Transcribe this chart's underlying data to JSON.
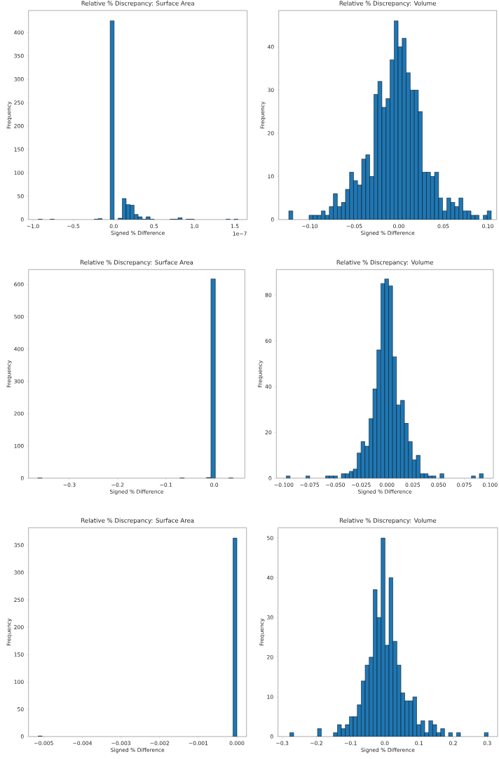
{
  "chart_data": [
    {
      "type": "histogram",
      "title": "Relative % Discrepancy: Surface Area",
      "xlabel": "Signed % Difference",
      "ylabel": "Frequency",
      "color": "#1f77b4",
      "bins": [
        -0.935,
        -0.8855,
        -0.836,
        -0.7865,
        -0.737,
        -0.6875,
        -0.638,
        -0.5885,
        -0.539,
        -0.4895,
        -0.44,
        -0.3905,
        -0.341,
        -0.2915,
        -0.242,
        -0.1925,
        -0.143,
        -0.0935,
        -0.044,
        0.0055,
        0.055,
        0.1045,
        0.154,
        0.2035,
        0.253,
        0.3025,
        0.352,
        0.4015,
        0.451,
        0.5005,
        0.55,
        0.5995,
        0.649,
        0.6985,
        0.748,
        0.7975,
        0.847,
        0.8965,
        0.946,
        0.9955,
        1.045,
        1.0945,
        1.144,
        1.1935,
        1.243,
        1.2925,
        1.342,
        1.3915,
        1.441,
        1.4905,
        1.54
      ],
      "values": [
        1,
        0,
        0,
        1,
        0,
        0,
        0,
        0,
        0,
        0,
        0,
        0,
        0,
        0,
        1,
        2,
        0,
        0,
        425,
        0,
        3,
        45,
        32,
        31,
        11,
        6,
        1,
        6,
        1,
        0,
        0,
        0,
        0,
        1,
        1,
        4,
        0,
        1,
        1,
        0,
        0,
        0,
        0,
        0,
        0,
        0,
        0,
        1,
        0,
        1
      ],
      "xlim": [
        -1.055,
        1.653
      ],
      "ylim": [
        0,
        447
      ],
      "xticks": [
        {
          "value": -1.0,
          "label": "−1.0"
        },
        {
          "value": -0.5,
          "label": "−0.5"
        },
        {
          "value": 0,
          "label": "0.0"
        },
        {
          "value": 0.5,
          "label": "0.5"
        },
        {
          "value": 1.0,
          "label": "1.0"
        },
        {
          "value": 1.5,
          "label": "1.5"
        }
      ],
      "yticks": [
        0,
        50,
        100,
        150,
        200,
        250,
        300,
        350,
        400
      ],
      "annotations": [
        "1e−7"
      ]
    },
    {
      "type": "histogram",
      "title": "Relative % Discrepancy: Volume",
      "xlabel": "Signed % Difference",
      "ylabel": "Frequency",
      "color": "#1f77b4",
      "bins": [
        -0.1236,
        -0.11905,
        -0.1145,
        -0.10995,
        -0.1054,
        -0.10085,
        -0.0963,
        -0.09175,
        -0.0872,
        -0.08265,
        -0.0781,
        -0.07355,
        -0.069,
        -0.06445,
        -0.0599,
        -0.05535,
        -0.0508,
        -0.04625,
        -0.0417,
        -0.03715,
        -0.0326,
        -0.02805,
        -0.0235,
        -0.01895,
        -0.0144,
        -0.00985,
        -0.0053,
        -0.00075,
        0.0038,
        0.00835,
        0.0129,
        0.01745,
        0.022,
        0.02655,
        0.0311,
        0.03565,
        0.0402,
        0.04475,
        0.0493,
        0.05385,
        0.0584,
        0.06295,
        0.0675,
        0.07205,
        0.0766,
        0.08115,
        0.0857,
        0.09025,
        0.0948,
        0.09935,
        0.1039
      ],
      "values": [
        2,
        0,
        0,
        0,
        0,
        1,
        1,
        1,
        2,
        1,
        3,
        6,
        3,
        4,
        7,
        11,
        9,
        8,
        14,
        15,
        10,
        29,
        32,
        26,
        28,
        37,
        46,
        40,
        42,
        34,
        30,
        30,
        25,
        11,
        11,
        10,
        11,
        5,
        2,
        5,
        4,
        3,
        5,
        2,
        2,
        1,
        1,
        0,
        1,
        2
      ],
      "xlim": [
        -0.1349,
        0.11
      ],
      "ylim": [
        0,
        48.4
      ],
      "xticks": [
        {
          "value": -0.1,
          "label": "−0.10"
        },
        {
          "value": -0.05,
          "label": "−0.05"
        },
        {
          "value": 0,
          "label": "0.00"
        },
        {
          "value": 0.05,
          "label": "0.05"
        },
        {
          "value": 0.1,
          "label": "0.10"
        }
      ],
      "yticks": [
        0,
        10,
        20,
        30,
        40
      ]
    },
    {
      "type": "histogram",
      "title": "Relative % Discrepancy: Surface Area",
      "xlabel": "Signed % Difference",
      "ylabel": "Frequency",
      "color": "#1f77b4",
      "bins": [
        -0.3656,
        -0.3564,
        -0.3472,
        -0.338,
        -0.3288,
        -0.3196,
        -0.3104,
        -0.3012,
        -0.292,
        -0.2828,
        -0.2736,
        -0.2644,
        -0.2552,
        -0.246,
        -0.2368,
        -0.2276,
        -0.2184,
        -0.2092,
        -0.2,
        -0.1908,
        -0.1816,
        -0.1724,
        -0.1632,
        -0.154,
        -0.1448,
        -0.1356,
        -0.1264,
        -0.1172,
        -0.108,
        -0.0988,
        -0.0896,
        -0.0804,
        -0.0712,
        -0.062,
        -0.0528,
        -0.0436,
        -0.0344,
        -0.0252,
        -0.016,
        -0.0068,
        0.0024,
        0.0116,
        0.0208,
        0.03,
        0.0392
      ],
      "values": [
        1,
        0,
        0,
        0,
        0,
        0,
        0,
        0,
        0,
        0,
        0,
        0,
        0,
        0,
        0,
        0,
        0,
        0,
        0,
        0,
        0,
        0,
        0,
        0,
        0,
        0,
        0,
        0,
        0,
        0,
        0,
        0,
        1,
        0,
        0,
        0,
        0,
        0,
        2,
        617,
        0,
        0,
        0,
        1
      ],
      "xlim": [
        -0.3846,
        0.0634
      ],
      "ylim": [
        0,
        646
      ],
      "xticks": [
        {
          "value": -0.3,
          "label": "−0.3"
        },
        {
          "value": -0.2,
          "label": "−0.2"
        },
        {
          "value": -0.1,
          "label": "−0.1"
        },
        {
          "value": 0,
          "label": "0.0"
        }
      ],
      "yticks": [
        0,
        100,
        200,
        300,
        400,
        500,
        600
      ]
    },
    {
      "type": "histogram",
      "title": "Relative % Discrepancy: Volume",
      "xlabel": "Signed % Difference",
      "ylabel": "Frequency",
      "color": "#1f77b4",
      "bins": [
        -0.0977,
        -0.0939,
        -0.0901,
        -0.0862,
        -0.0824,
        -0.0786,
        -0.0748,
        -0.0709,
        -0.0671,
        -0.0633,
        -0.0595,
        -0.0557,
        -0.0518,
        -0.048,
        -0.0442,
        -0.0404,
        -0.0365,
        -0.0327,
        -0.0289,
        -0.0251,
        -0.0213,
        -0.0174,
        -0.0136,
        -0.0098,
        -0.006,
        -0.0022,
        0.0017,
        0.0055,
        0.0093,
        0.0131,
        0.017,
        0.0208,
        0.0246,
        0.0284,
        0.0322,
        0.0361,
        0.0399,
        0.0437,
        0.0475,
        0.0514,
        0.0552,
        0.059,
        0.0628,
        0.0666,
        0.0705,
        0.0743,
        0.0781,
        0.0819,
        0.0858,
        0.0896,
        0.0934
      ],
      "values": [
        1,
        0,
        0,
        0,
        0,
        1,
        0,
        0,
        0,
        0,
        1,
        1,
        1,
        0,
        2,
        2,
        3,
        4,
        11,
        16,
        14,
        26,
        39,
        56,
        85,
        87,
        84,
        53,
        32,
        34,
        24,
        16,
        8,
        10,
        2,
        2,
        1,
        1,
        0,
        2,
        0,
        0,
        0,
        0,
        0,
        0,
        0,
        1,
        0,
        2
      ],
      "xlim": [
        -0.1072,
        0.1032
      ],
      "ylim": [
        0,
        91.1
      ],
      "xticks": [
        {
          "value": -0.1,
          "label": "−0.100"
        },
        {
          "value": -0.075,
          "label": "−0.075"
        },
        {
          "value": -0.05,
          "label": "−0.050"
        },
        {
          "value": -0.025,
          "label": "−0.025"
        },
        {
          "value": 0,
          "label": "0.000"
        },
        {
          "value": 0.025,
          "label": "0.025"
        },
        {
          "value": 0.05,
          "label": "0.050"
        },
        {
          "value": 0.075,
          "label": "0.075"
        },
        {
          "value": 0.1,
          "label": "0.100"
        }
      ],
      "yticks": [
        0,
        20,
        40,
        60,
        80
      ]
    },
    {
      "type": "histogram",
      "title": "Relative % Discrepancy: Surface Area",
      "xlabel": "Signed % Difference",
      "ylabel": "Frequency",
      "color": "#1f77b4",
      "bins": [
        -0.005145,
        -0.0050421,
        -0.0049392,
        -0.0048363,
        -0.0047334,
        -0.0046305,
        -0.0045276,
        -0.0044247,
        -0.0043218,
        -0.0042189,
        -0.004116,
        -0.0040131,
        -0.0039102,
        -0.0038073,
        -0.0037044,
        -0.0036015,
        -0.0034986,
        -0.0033957,
        -0.0032928,
        -0.0031899,
        -0.003087,
        -0.0029841,
        -0.0028812,
        -0.0027783,
        -0.0026754,
        -0.0025725,
        -0.0024696,
        -0.0023667,
        -0.0022638,
        -0.0021609,
        -0.002058,
        -0.0019551,
        -0.0018522,
        -0.0017493,
        -0.0016464,
        -0.0015435,
        -0.0014406,
        -0.0013377,
        -0.0012348,
        -0.0011319,
        -0.001029,
        -0.0009261,
        -0.0008232,
        -0.0007203,
        -0.0006174,
        -0.0005145,
        -0.0004116,
        -0.0003087,
        -0.0002058,
        -0.0001029,
        0
      ],
      "values": [
        1,
        0,
        0,
        0,
        0,
        0,
        0,
        0,
        0,
        0,
        0,
        0,
        0,
        0,
        0,
        0,
        0,
        0,
        0,
        0,
        0,
        0,
        0,
        0,
        0,
        0,
        0,
        0,
        0,
        0,
        0,
        0,
        0,
        0,
        0,
        0,
        0,
        0,
        0,
        0,
        0,
        0,
        0,
        0,
        0,
        0,
        0,
        0,
        0,
        363
      ],
      "xlim": [
        -0.005393,
        0.000248
      ],
      "ylim": [
        0,
        382
      ],
      "xticks": [
        {
          "value": -0.005,
          "label": "−0.005"
        },
        {
          "value": -0.004,
          "label": "−0.004"
        },
        {
          "value": -0.003,
          "label": "−0.003"
        },
        {
          "value": -0.002,
          "label": "−0.002"
        },
        {
          "value": -0.001,
          "label": "−0.001"
        },
        {
          "value": 0,
          "label": "0.000"
        }
      ],
      "yticks": [
        0,
        50,
        100,
        150,
        200,
        250,
        300,
        350
      ]
    },
    {
      "type": "histogram",
      "title": "Relative % Discrepancy: Volume",
      "xlabel": "Signed % Difference",
      "ylabel": "Frequency",
      "color": "#1f77b4",
      "bins": [
        -0.2781,
        -0.26648,
        -0.25486,
        -0.24324,
        -0.23162,
        -0.22,
        -0.20838,
        -0.19676,
        -0.18514,
        -0.17352,
        -0.1619,
        -0.15028,
        -0.13866,
        -0.12704,
        -0.11542,
        -0.1038,
        -0.09218,
        -0.08056,
        -0.06894,
        -0.05732,
        -0.0457,
        -0.03408,
        -0.02246,
        -0.01084,
        0.00078,
        0.0124,
        0.02402,
        0.03564,
        0.04726,
        0.05888,
        0.0705,
        0.08212,
        0.09374,
        0.10536,
        0.11698,
        0.1286,
        0.14022,
        0.15184,
        0.16346,
        0.17508,
        0.1867,
        0.19832,
        0.20994,
        0.22156,
        0.23318,
        0.2448,
        0.25642,
        0.26804,
        0.27966,
        0.29128,
        0.3029
      ],
      "values": [
        1,
        0,
        0,
        0,
        0,
        0,
        0,
        2,
        0,
        0,
        0,
        1,
        3,
        2,
        3,
        5,
        5,
        8,
        14,
        18,
        20,
        37,
        30,
        50,
        23,
        40,
        24,
        18,
        11,
        9,
        9,
        10,
        3,
        4,
        1,
        4,
        3,
        1,
        2,
        0,
        1,
        0,
        1,
        0,
        0,
        0,
        0,
        0,
        0,
        1
      ],
      "xlim": [
        -0.3123,
        0.3301
      ],
      "ylim": [
        0,
        52.6
      ],
      "xticks": [
        {
          "value": -0.3,
          "label": "−0.3"
        },
        {
          "value": -0.2,
          "label": "−0.2"
        },
        {
          "value": -0.1,
          "label": "−0.1"
        },
        {
          "value": 0,
          "label": "0.0"
        },
        {
          "value": 0.1,
          "label": "0.1"
        },
        {
          "value": 0.2,
          "label": "0.2"
        },
        {
          "value": 0.3,
          "label": "0.3"
        }
      ],
      "yticks": [
        0,
        10,
        20,
        30,
        40,
        50
      ]
    }
  ]
}
